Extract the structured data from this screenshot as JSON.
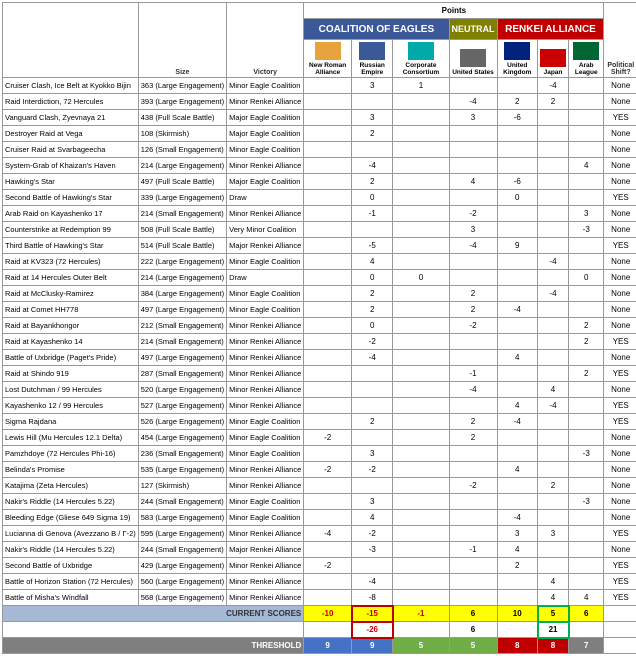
{
  "header": {
    "points": "Points",
    "coalition": "COALITION OF EAGLES",
    "neutral": "NEUTRAL",
    "renkei": "RENKEI ALLIANCE",
    "size": "Size",
    "victory": "Victory",
    "shift": "Political Shift?"
  },
  "factions": [
    {
      "n": "New Roman Alliance",
      "c": "#e8a33d"
    },
    {
      "n": "Russian Empire",
      "c": "#3b5998"
    },
    {
      "n": "Corporate Consortium",
      "c": "#0aa"
    },
    {
      "n": "United States",
      "c": "#666"
    },
    {
      "n": "United Kingdom",
      "c": "#00247d"
    },
    {
      "n": "Japan",
      "c": "#c00"
    },
    {
      "n": "Arab League",
      "c": "#006633"
    }
  ],
  "rows": [
    {
      "n": "Cruiser Clash, Ice Belt at Kyokko Bijin",
      "s": "363 (Large Engagement)",
      "v": "Minor Eagle Coalition",
      "p": [
        "",
        "3",
        "1",
        "",
        "",
        "-4",
        ""
      ],
      "ps": "None"
    },
    {
      "n": "Raid Interdiction, 72 Hercules",
      "s": "393 (Large Engagement)",
      "v": "Minor Renkei Alliance",
      "p": [
        "",
        "",
        "",
        "-4",
        "2",
        "2",
        ""
      ],
      "ps": "None"
    },
    {
      "n": "Vanguard Clash, Zyevnaya 21",
      "s": "438 (Full Scale Battle)",
      "v": "Major Eagle Coalition",
      "p": [
        "",
        "3",
        "",
        "3",
        "-6",
        "",
        ""
      ],
      "ps": "YES"
    },
    {
      "n": "Destroyer Raid at Vega",
      "s": "108 (Skirmish)",
      "v": "Major Eagle Coalition",
      "p": [
        "",
        "2",
        "",
        "",
        "",
        "",
        ""
      ],
      "ps": "None"
    },
    {
      "n": "Cruiser Raid at Svarbageecha",
      "s": "126 (Small Engagement)",
      "v": "Minor Eagle Coalition",
      "p": [
        "",
        "",
        "",
        "",
        "",
        "",
        ""
      ],
      "ps": "None"
    },
    {
      "n": "System-Grab of Khaizan's Haven",
      "s": "214 (Large Engagement)",
      "v": "Minor Renkei Alliance",
      "p": [
        "",
        "-4",
        "",
        "",
        "",
        "",
        "4"
      ],
      "ps": "None"
    },
    {
      "n": "Hawking's Star",
      "s": "497 (Full Scale Battle)",
      "v": "Major Eagle Coalition",
      "p": [
        "",
        "2",
        "",
        "4",
        "-6",
        "",
        ""
      ],
      "ps": "None"
    },
    {
      "n": "Second Battle of Hawking's Star",
      "s": "339 (Large Engagement)",
      "v": "Draw",
      "p": [
        "",
        "0",
        "",
        "",
        "0",
        "",
        ""
      ],
      "ps": "YES"
    },
    {
      "n": "Arab Raid on Kayashenko 17",
      "s": "214 (Small Engagement)",
      "v": "Minor Renkei Alliance",
      "p": [
        "",
        "-1",
        "",
        "-2",
        "",
        "",
        "3"
      ],
      "ps": "None"
    },
    {
      "n": "Counterstrike at Redemption 99",
      "s": "508 (Full Scale Battle)",
      "v": "Very Minor Coalition",
      "p": [
        "",
        "",
        "",
        "3",
        "",
        "",
        "-3"
      ],
      "ps": "None"
    },
    {
      "n": "Third Battle of Hawking's Star",
      "s": "514 (Full Scale Battle)",
      "v": "Major Renkei Alliance",
      "p": [
        "",
        "-5",
        "",
        "-4",
        "9",
        "",
        ""
      ],
      "ps": "YES"
    },
    {
      "n": "Raid at KV323 (72 Hercules)",
      "s": "222 (Large Engagement)",
      "v": "Minor Eagle Coalition",
      "p": [
        "",
        "4",
        "",
        "",
        "",
        "-4",
        ""
      ],
      "ps": "None"
    },
    {
      "n": "Raid at 14 Hercules Outer Belt",
      "s": "214 (Large Engagement)",
      "v": "Draw",
      "p": [
        "",
        "0",
        "0",
        "",
        "",
        "",
        "0"
      ],
      "ps": "None"
    },
    {
      "n": "Raid at McClusky-Ramirez",
      "s": "384 (Large Engagement)",
      "v": "Minor Eagle Coalition",
      "p": [
        "",
        "2",
        "",
        "2",
        "",
        "-4",
        ""
      ],
      "ps": "None"
    },
    {
      "n": "Raid at Comet HH778",
      "s": "497 (Large Engagement)",
      "v": "Minor Eagle Coalition",
      "p": [
        "",
        "2",
        "",
        "2",
        "-4",
        "",
        ""
      ],
      "ps": "None"
    },
    {
      "n": "Raid at Bayankhongor",
      "s": "212 (Small Engagement)",
      "v": "Minor Renkei Alliance",
      "p": [
        "",
        "0",
        "",
        "-2",
        "",
        "",
        "2"
      ],
      "ps": "None"
    },
    {
      "n": "Raid at Kayashenko 14",
      "s": "214 (Small Engagement)",
      "v": "Minor Renkei Alliance",
      "p": [
        "",
        "-2",
        "",
        "",
        "",
        "",
        "2"
      ],
      "ps": "YES"
    },
    {
      "n": "Battle of Uxbridge (Paget's Pride)",
      "s": "497 (Large Engagement)",
      "v": "Minor Renkei Alliance",
      "p": [
        "",
        "-4",
        "",
        "",
        "4",
        "",
        ""
      ],
      "ps": "None"
    },
    {
      "n": "Raid at Shindo 919",
      "s": "287 (Small Engagement)",
      "v": "Minor Renkei Alliance",
      "p": [
        "",
        "",
        "",
        "-1",
        "",
        "",
        "2"
      ],
      "ps": "YES"
    },
    {
      "n": "Lost Dutchman / 99 Hercules",
      "s": "520 (Large Engagement)",
      "v": "Minor Renkei Alliance",
      "p": [
        "",
        "",
        "",
        "-4",
        "",
        "4",
        ""
      ],
      "ps": "None"
    },
    {
      "n": "Kayashenko 12 / 99 Hercules",
      "s": "527 (Large Engagement)",
      "v": "Minor Renkei Alliance",
      "p": [
        "",
        "",
        "",
        "",
        "4",
        "-4",
        ""
      ],
      "ps": "YES"
    },
    {
      "n": "Sigma Rajdana",
      "s": "526 (Large Engagement)",
      "v": "Minor Eagle Coalition",
      "p": [
        "",
        "2",
        "",
        "2",
        "-4",
        "",
        ""
      ],
      "ps": "YES"
    },
    {
      "n": "Lewis Hill (Mu Hercules 12.1 Delta)",
      "s": "454 (Large Engagement)",
      "v": "Minor Eagle Coalition",
      "p": [
        "-2",
        "",
        "",
        "2",
        "",
        "",
        ""
      ],
      "ps": "None"
    },
    {
      "n": "Pamzhdoye (72 Hercules Phi-16)",
      "s": "236 (Small Engagement)",
      "v": "Minor Eagle Coalition",
      "p": [
        "",
        "3",
        "",
        "",
        "",
        "",
        "-3"
      ],
      "ps": "None"
    },
    {
      "n": "Belinda's Promise",
      "s": "535 (Large Engagement)",
      "v": "Minor Renkei Alliance",
      "p": [
        "-2",
        "-2",
        "",
        "",
        "4",
        "",
        ""
      ],
      "ps": "None"
    },
    {
      "n": "Katajima (Zeta Hercules)",
      "s": "127 (Skirmish)",
      "v": "Minor Renkei Alliance",
      "p": [
        "",
        "",
        "",
        "-2",
        "",
        "2",
        ""
      ],
      "ps": "None"
    },
    {
      "n": "Nakir's Riddle (14 Hercules 5.22)",
      "s": "244 (Small Engagement)",
      "v": "Minor Eagle Coalition",
      "p": [
        "",
        "3",
        "",
        "",
        "",
        "",
        "-3"
      ],
      "ps": "None"
    },
    {
      "n": "Bleeding Edge (Gliese 649 Sigma 19)",
      "s": "583 (Large Engagement)",
      "v": "Minor Eagle Coalition",
      "p": [
        "",
        "4",
        "",
        "",
        "-4",
        "",
        ""
      ],
      "ps": "None"
    },
    {
      "n": "Lucianna di Genova (Avezzano B / Γ-2)",
      "s": "595 (Large Engagement)",
      "v": "Minor Renkei Alliance",
      "p": [
        "-4",
        "-2",
        "",
        "",
        "3",
        "3",
        ""
      ],
      "ps": "YES"
    },
    {
      "n": "Nakir's Riddle (14 Hercules 5.22)",
      "s": "244 (Small Engagement)",
      "v": "Major Renkei Alliance",
      "p": [
        "",
        "-3",
        "",
        "-1",
        "4",
        "",
        ""
      ],
      "ps": "None"
    },
    {
      "n": "Second Battle of Uxbridge",
      "s": "429 (Large Engagement)",
      "v": "Minor Renkei Alliance",
      "p": [
        "-2",
        "",
        "",
        "",
        "2",
        "",
        ""
      ],
      "ps": "YES"
    },
    {
      "n": "Battle of Horizon Station (72 Hercules)",
      "s": "560 (Large Engagement)",
      "v": "Minor Renkei Alliance",
      "p": [
        "",
        "-4",
        "",
        "",
        "",
        "4",
        ""
      ],
      "ps": "YES"
    },
    {
      "n": "Battle of Misha's Windfall",
      "s": "568 (Large Engagement)",
      "v": "Minor Renkei Alliance",
      "p": [
        "",
        "-8",
        "",
        "",
        "",
        "4",
        "4"
      ],
      "ps": "YES"
    }
  ],
  "footer": {
    "cs_label": "CURRENT SCORES",
    "cs": [
      "-10",
      "-15",
      "-1",
      "6",
      "10",
      "5",
      "6"
    ],
    "sum": [
      "",
      "-26",
      "",
      "6",
      "",
      "21",
      ""
    ],
    "th_label": "THRESHOLD",
    "th": [
      "9",
      "9",
      "5",
      "5",
      "8",
      "8",
      "7"
    ]
  },
  "colors": {
    "cs_bg": [
      "#ffff00",
      "#ffff00",
      "#ffff00",
      "#ffff00",
      "#ffff00",
      "#ffff00",
      "#ffff00"
    ],
    "cs_fg": [
      "#c00000",
      "#c00000",
      "#c00000",
      "#000",
      "#000",
      "#000",
      "#000"
    ],
    "th_bg": [
      "#4472c4",
      "#4472c4",
      "#70ad47",
      "#70ad47",
      "#c00000",
      "#c00000",
      "#7f7f7f"
    ]
  }
}
